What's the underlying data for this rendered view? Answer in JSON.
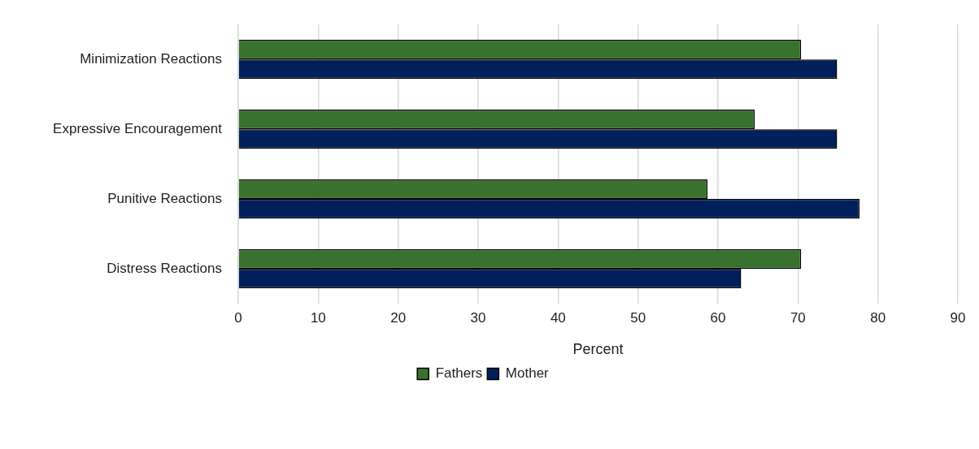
{
  "chart_data": {
    "type": "bar",
    "orientation": "horizontal",
    "xlabel": "Percent",
    "categories": [
      "Minimization Reactions",
      "Expressive Encouragement",
      "Punitive Reactions",
      "Distress Reactions"
    ],
    "series": [
      {
        "name": "Fathers",
        "color": "#38722e",
        "values": [
          70.4,
          64.6,
          58.7,
          70.4
        ]
      },
      {
        "name": "Mother",
        "color": "#00205b",
        "values": [
          74.9,
          74.9,
          77.7,
          62.9
        ]
      }
    ],
    "xlim": [
      0,
      90
    ],
    "xticks": [
      0,
      10,
      20,
      30,
      40,
      50,
      60,
      70,
      80,
      90
    ],
    "grid": "x",
    "legend": "bottom"
  }
}
